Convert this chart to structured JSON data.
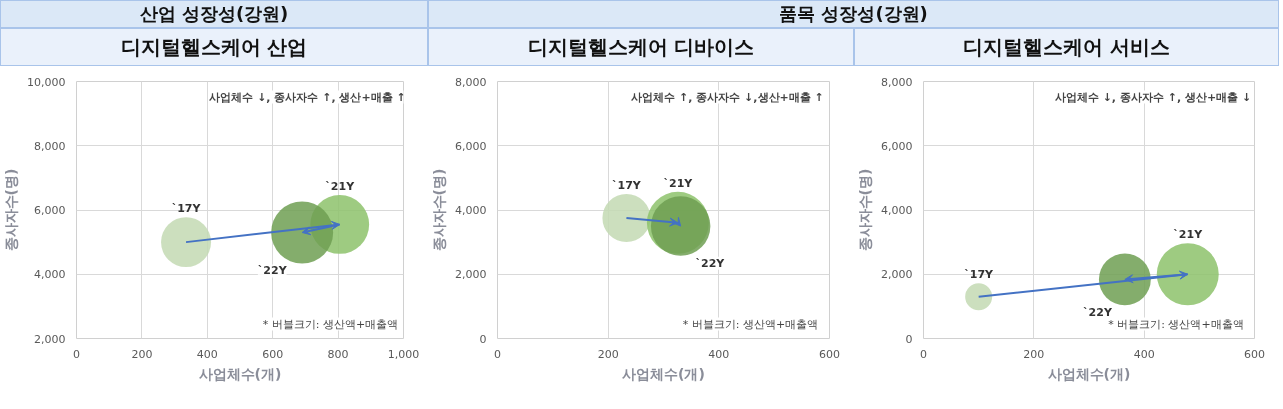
{
  "chart_data": [
    {
      "type": "bubble",
      "title": "산업 성장성(강원)",
      "subtitle": "디지털헬스케어 산업",
      "xlabel": "사업체수(개)",
      "ylabel": "종사자수(명)",
      "annotations": [
        "사업체수 ↓, 종사자수 ↑, 생산+매출 ↑",
        "* 버블크기: 생산액+매출액"
      ],
      "xlim": [
        0,
        1000
      ],
      "ylim": [
        2000,
        10000
      ],
      "xticks": [
        0,
        200,
        400,
        600,
        800,
        {
          "value": 1000,
          "label": "1,000"
        }
      ],
      "yticks": [
        {
          "value": 2000,
          "label": "2,000"
        },
        {
          "value": 4000,
          "label": "4,000"
        },
        {
          "value": 6000,
          "label": "6,000"
        },
        {
          "value": 8000,
          "label": "8,000"
        },
        {
          "value": 10000,
          "label": "10,000"
        }
      ],
      "grid": true,
      "series": [
        {
          "name": "`17Y",
          "color": "#c3d9b3",
          "x": [
            335
          ],
          "values": [
            5000
          ],
          "sizes": [
            0.65
          ]
        },
        {
          "name": "`21Y",
          "color": "#8dc26b",
          "x": [
            805
          ],
          "values": [
            5550
          ],
          "sizes": [
            0.9
          ]
        },
        {
          "name": "`22Y",
          "color": "#6f9f52",
          "x": [
            690
          ],
          "values": [
            5300
          ],
          "sizes": [
            1
          ]
        }
      ]
    },
    {
      "type": "bubble",
      "title": "품목 성장성(강원)",
      "subtitle": "디지털헬스케어 디바이스",
      "xlabel": "사업체수(개)",
      "ylabel": "종사자수(명)",
      "annotations": [
        "사업체수 ↑, 종사자수 ↓,생산+매출 ↑",
        "* 버블크기: 생산액+매출액"
      ],
      "xlim": [
        0,
        600
      ],
      "ylim": [
        0,
        8000
      ],
      "xticks": [
        0,
        200,
        400,
        600
      ],
      "yticks": [
        0,
        {
          "value": 2000,
          "label": "2,000"
        },
        {
          "value": 4000,
          "label": "4,000"
        },
        {
          "value": 6000,
          "label": "6,000"
        },
        {
          "value": 8000,
          "label": "8,000"
        }
      ],
      "grid": true,
      "series": [
        {
          "name": "`17Y",
          "color": "#c3d9b3",
          "x": [
            233
          ],
          "values": [
            3750
          ],
          "sizes": [
            0.6
          ]
        },
        {
          "name": "`21Y",
          "color": "#8dc26b",
          "x": [
            326
          ],
          "values": [
            3600
          ],
          "sizes": [
            1
          ]
        },
        {
          "name": "`22Y",
          "color": "#6f9f52",
          "x": [
            331
          ],
          "values": [
            3500
          ],
          "sizes": [
            0.92
          ]
        }
      ]
    },
    {
      "type": "bubble",
      "subtitle": "디지털헬스케어 서비스",
      "xlabel": "사업체수(개)",
      "ylabel": "종사자수(명)",
      "annotations": [
        "사업체수 ↓, 종사자수 ↑, 생산+매출 ↓",
        "* 버블크기: 생산액+매출액"
      ],
      "xlim": [
        0,
        600
      ],
      "ylim": [
        0,
        8000
      ],
      "xticks": [
        0,
        200,
        400,
        600
      ],
      "yticks": [
        0,
        {
          "value": 2000,
          "label": "2,000"
        },
        {
          "value": 4000,
          "label": "4,000"
        },
        {
          "value": 6000,
          "label": "6,000"
        },
        {
          "value": 8000,
          "label": "8,000"
        }
      ],
      "grid": true,
      "series": [
        {
          "name": "`17Y",
          "color": "#c3d9b3",
          "x": [
            100
          ],
          "values": [
            1300
          ],
          "sizes": [
            0.19
          ]
        },
        {
          "name": "`21Y",
          "color": "#8dc26b",
          "x": [
            479
          ],
          "values": [
            2000
          ],
          "sizes": [
            1
          ]
        },
        {
          "name": "`22Y",
          "color": "#6f9f52",
          "x": [
            365
          ],
          "values": [
            1840
          ],
          "sizes": [
            0.7
          ]
        }
      ]
    }
  ]
}
